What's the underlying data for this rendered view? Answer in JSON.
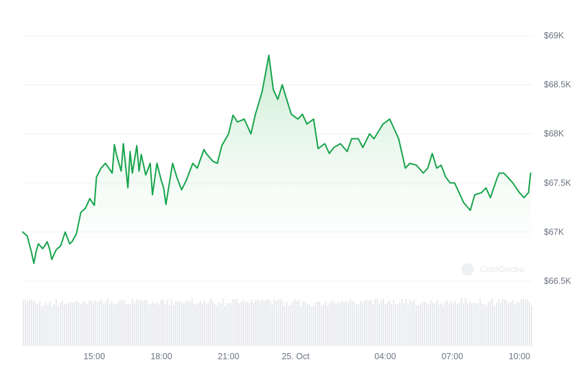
{
  "watermark": "CoinGecko",
  "colors": {
    "line": "#16a34a",
    "area_top": "#bfe8c8",
    "grid": "#eef0f3",
    "volume": "#e5e7eb",
    "axis_text": "#6b7280"
  },
  "chart_data": {
    "type": "line",
    "title": "",
    "xlabel": "",
    "ylabel": "",
    "ylim": [
      66500,
      69000
    ],
    "y_ticks": [
      {
        "value": 69000,
        "label": "$69K"
      },
      {
        "value": 68500,
        "label": "$68.5K"
      },
      {
        "value": 68000,
        "label": "$68K"
      },
      {
        "value": 67500,
        "label": "$67.5K"
      },
      {
        "value": 67000,
        "label": "$67K"
      },
      {
        "value": 66500,
        "label": "$66.5K"
      }
    ],
    "x_ticks": [
      {
        "x": 15,
        "label": "15:00"
      },
      {
        "x": 18,
        "label": "18:00"
      },
      {
        "x": 21,
        "label": "21:00"
      },
      {
        "x": 24,
        "label": "25. Oct"
      },
      {
        "x": 28,
        "label": "04:00"
      },
      {
        "x": 31,
        "label": "07:00"
      },
      {
        "x": 34,
        "label": "10:00"
      }
    ],
    "x_range": [
      11.8,
      34.6
    ],
    "grid": true,
    "x_unit": "hours from 24 Oct 00:00",
    "series": [
      {
        "x": [
          11.8,
          12.0,
          12.2,
          12.3,
          12.4,
          12.5,
          12.7,
          12.9,
          13.0,
          13.1,
          13.3,
          13.5,
          13.7,
          13.9,
          14.0,
          14.2,
          14.4,
          14.6,
          14.8,
          15.0,
          15.1,
          15.3,
          15.5,
          15.8,
          15.9,
          16.0,
          16.2,
          16.3,
          16.5,
          16.6,
          16.7,
          16.9,
          17.0,
          17.1,
          17.3,
          17.5,
          17.6,
          17.8,
          18.0,
          18.1,
          18.2,
          18.5,
          18.7,
          18.9,
          19.1,
          19.4,
          19.6,
          19.9,
          20.0,
          20.3,
          20.5,
          20.7,
          21.0,
          21.2,
          21.4,
          21.7,
          22.0,
          22.2,
          22.5,
          22.8,
          23.0,
          23.2,
          23.4,
          23.6,
          23.8,
          24.1,
          24.3,
          24.5,
          24.8,
          25.0,
          25.3,
          25.5,
          25.7,
          26.0,
          26.3,
          26.5,
          26.8,
          27.0,
          27.3,
          27.5,
          27.9,
          28.2,
          28.4,
          28.6,
          28.9,
          29.1,
          29.4,
          29.7,
          29.9,
          30.1,
          30.3,
          30.5,
          30.7,
          30.9,
          31.1,
          31.3,
          31.5,
          31.8,
          32.0,
          32.3,
          32.5,
          32.7,
          33.0,
          33.1,
          33.3,
          33.5,
          33.7,
          34.0,
          34.2,
          34.4,
          34.5
        ],
        "y": [
          67000,
          66960,
          66790,
          66680,
          66800,
          66880,
          66830,
          66900,
          66830,
          66720,
          66820,
          66860,
          67000,
          66880,
          66900,
          66980,
          67200,
          67240,
          67340,
          67270,
          67560,
          67650,
          67700,
          67600,
          67890,
          67780,
          67620,
          67900,
          67450,
          67820,
          67600,
          67880,
          67620,
          67790,
          67580,
          67700,
          67380,
          67700,
          67520,
          67450,
          67280,
          67700,
          67550,
          67430,
          67520,
          67700,
          67650,
          67840,
          67800,
          67720,
          67700,
          67880,
          68000,
          68190,
          68120,
          68150,
          68000,
          68200,
          68430,
          68800,
          68450,
          68350,
          68500,
          68350,
          68200,
          68150,
          68200,
          68100,
          68150,
          67850,
          67900,
          67800,
          67860,
          67900,
          67820,
          67950,
          67950,
          67860,
          68000,
          67950,
          68100,
          68150,
          68050,
          67950,
          67650,
          67700,
          67680,
          67600,
          67650,
          67800,
          67650,
          67680,
          67560,
          67500,
          67500,
          67400,
          67300,
          67220,
          67380,
          67400,
          67450,
          67350,
          67550,
          67600,
          67600,
          67550,
          67500,
          67400,
          67350,
          67400,
          67600
        ]
      }
    ],
    "volume": {
      "note": "relative intraday volume bars, normalized 0-1",
      "values": [
        0.95,
        0.88,
        0.93,
        0.85,
        0.97,
        0.9,
        0.82,
        0.96,
        0.91,
        0.87,
        0.94,
        0.89,
        0.98,
        0.86,
        0.92,
        0.95,
        0.84,
        0.9,
        0.97,
        0.88,
        0.93,
        0.96,
        0.85,
        0.91,
        0.99,
        0.87,
        0.94,
        0.9,
        0.83,
        0.96,
        0.92,
        0.88,
        0.95,
        0.97,
        0.86,
        0.9,
        0.93,
        0.89,
        0.98,
        0.85,
        0.92,
        0.87,
        0.94,
        0.91,
        0.96,
        0.83,
        0.88,
        0.95,
        0.9,
        0.93,
        0.86,
        0.97,
        0.89,
        0.92,
        0.84,
        0.95,
        0.9,
        0.87,
        0.93,
        0.96,
        0.88,
        0.91,
        0.85,
        0.94,
        0.9,
        0.82,
        0.96,
        0.89,
        0.93,
        0.87,
        0.95,
        0.9,
        0.84,
        0.92,
        0.97,
        0.88,
        0.91,
        0.86,
        0.94,
        0.9,
        0.83,
        0.96,
        0.89,
        0.92,
        0.87,
        0.95,
        0.91,
        0.85,
        0.93,
        0.98,
        0.88,
        0.9,
        0.86,
        0.94,
        0.92
      ]
    }
  }
}
